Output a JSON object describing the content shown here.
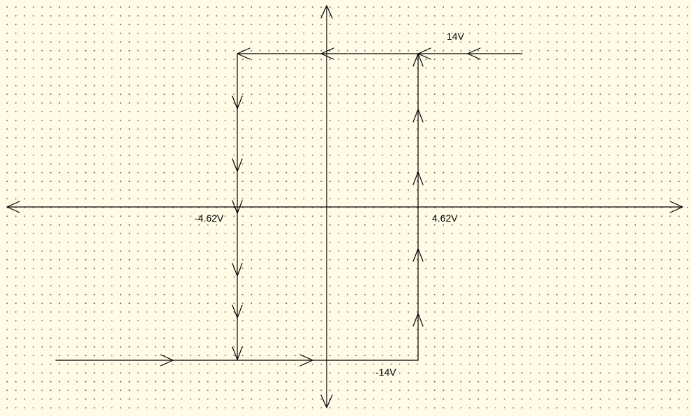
{
  "labels": {
    "upper_saturation": "14V",
    "lower_threshold": "-4.62V",
    "upper_threshold": "4.62V",
    "lower_saturation": "-14V"
  },
  "colors": {
    "background": "#fffbe6",
    "line": "#000000",
    "dots": "#6b6b6b"
  }
}
